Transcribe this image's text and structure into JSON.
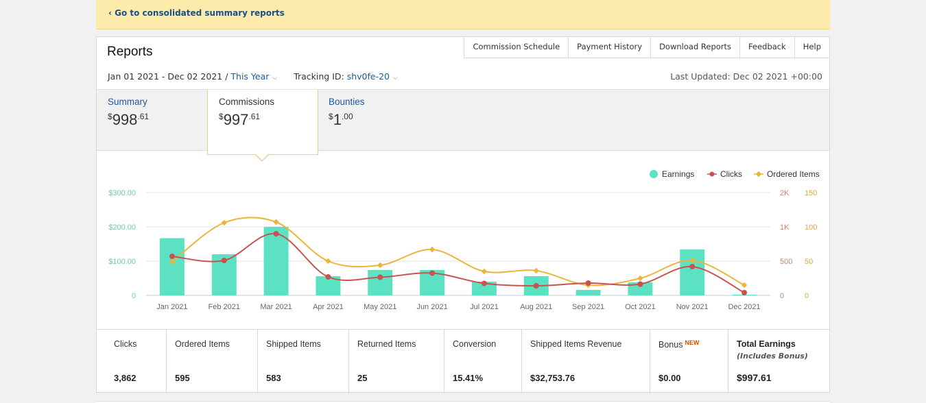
{
  "banner": {
    "link": "‹ Go to consolidated summary reports"
  },
  "header": {
    "title": "Reports"
  },
  "topnav": [
    "Commission Schedule",
    "Payment History",
    "Download Reports",
    "Feedback",
    "Help"
  ],
  "filters": {
    "date_range": "Jan 01 2021 - Dec 02 2021 / ",
    "period": "This Year",
    "tracking_label": "Tracking ID: ",
    "tracking_id": "shv0fe-20",
    "last_updated": "Last Updated: Dec 02 2021 +00:00"
  },
  "tabs": [
    {
      "label": "Summary",
      "currency": "$",
      "whole": "998",
      "cents": ".61"
    },
    {
      "label": "Commissions",
      "currency": "$",
      "whole": "997",
      "cents": ".61"
    },
    {
      "label": "Bounties",
      "currency": "$",
      "whole": "1",
      "cents": ".00"
    }
  ],
  "chart_data": {
    "type": "bar",
    "categories": [
      "Jan 2021",
      "Feb 2021",
      "Mar 2021",
      "Apr 2021",
      "May 2021",
      "Jun 2021",
      "Jul 2021",
      "Aug 2021",
      "Sep 2021",
      "Oct 2021",
      "Nov 2021",
      "Dec 2021"
    ],
    "series": [
      {
        "name": "Earnings",
        "type": "bar",
        "axis": "left",
        "color": "#5ce1c2",
        "values": [
          167,
          120,
          200,
          56,
          74,
          74,
          40,
          56,
          16,
          38,
          134,
          2
        ]
      },
      {
        "name": "Clicks",
        "type": "line",
        "axis": "right-1",
        "color": "#c8534e",
        "values": [
          570,
          510,
          900,
          270,
          265,
          325,
          175,
          140,
          180,
          165,
          420,
          40
        ]
      },
      {
        "name": "Ordered Items",
        "type": "line",
        "axis": "right-2",
        "color": "#e9b63a",
        "values": [
          49,
          106,
          107,
          50,
          44,
          67,
          35,
          36,
          15,
          25,
          51,
          15
        ]
      }
    ],
    "y_left": {
      "ticks": [
        "$300.00",
        "$200.00",
        "$100.00",
        "0"
      ],
      "range": [
        0,
        300
      ]
    },
    "y_right_1": {
      "ticks": [
        "2K",
        "1K",
        "500",
        "0"
      ],
      "range": [
        0,
        1500
      ]
    },
    "y_right_2": {
      "ticks": [
        "150",
        "100",
        "50",
        "0"
      ],
      "range": [
        0,
        150
      ]
    },
    "legend": "top-right",
    "grid": true
  },
  "metrics": {
    "clicks": {
      "label": "Clicks",
      "value": "3,862"
    },
    "ordered": {
      "label": "Ordered Items",
      "value": "595"
    },
    "shipped": {
      "label": "Shipped Items",
      "value": "583"
    },
    "returned": {
      "label": "Returned Items",
      "value": "25"
    },
    "conversion": {
      "label": "Conversion",
      "value": "15.41%"
    },
    "revenue": {
      "label": "Shipped Items Revenue",
      "value": "$32,753.76"
    },
    "bonus": {
      "label": "Bonus",
      "badge": "NEW",
      "value": "$0.00"
    },
    "total": {
      "label": "Total Earnings",
      "sub": "(Includes Bonus)",
      "value": "$997.61"
    }
  },
  "colors": {
    "link": "#1a5aa0",
    "banner": "#fcebab",
    "accent_border": "#e8d08a",
    "new_badge": "#c45500"
  }
}
